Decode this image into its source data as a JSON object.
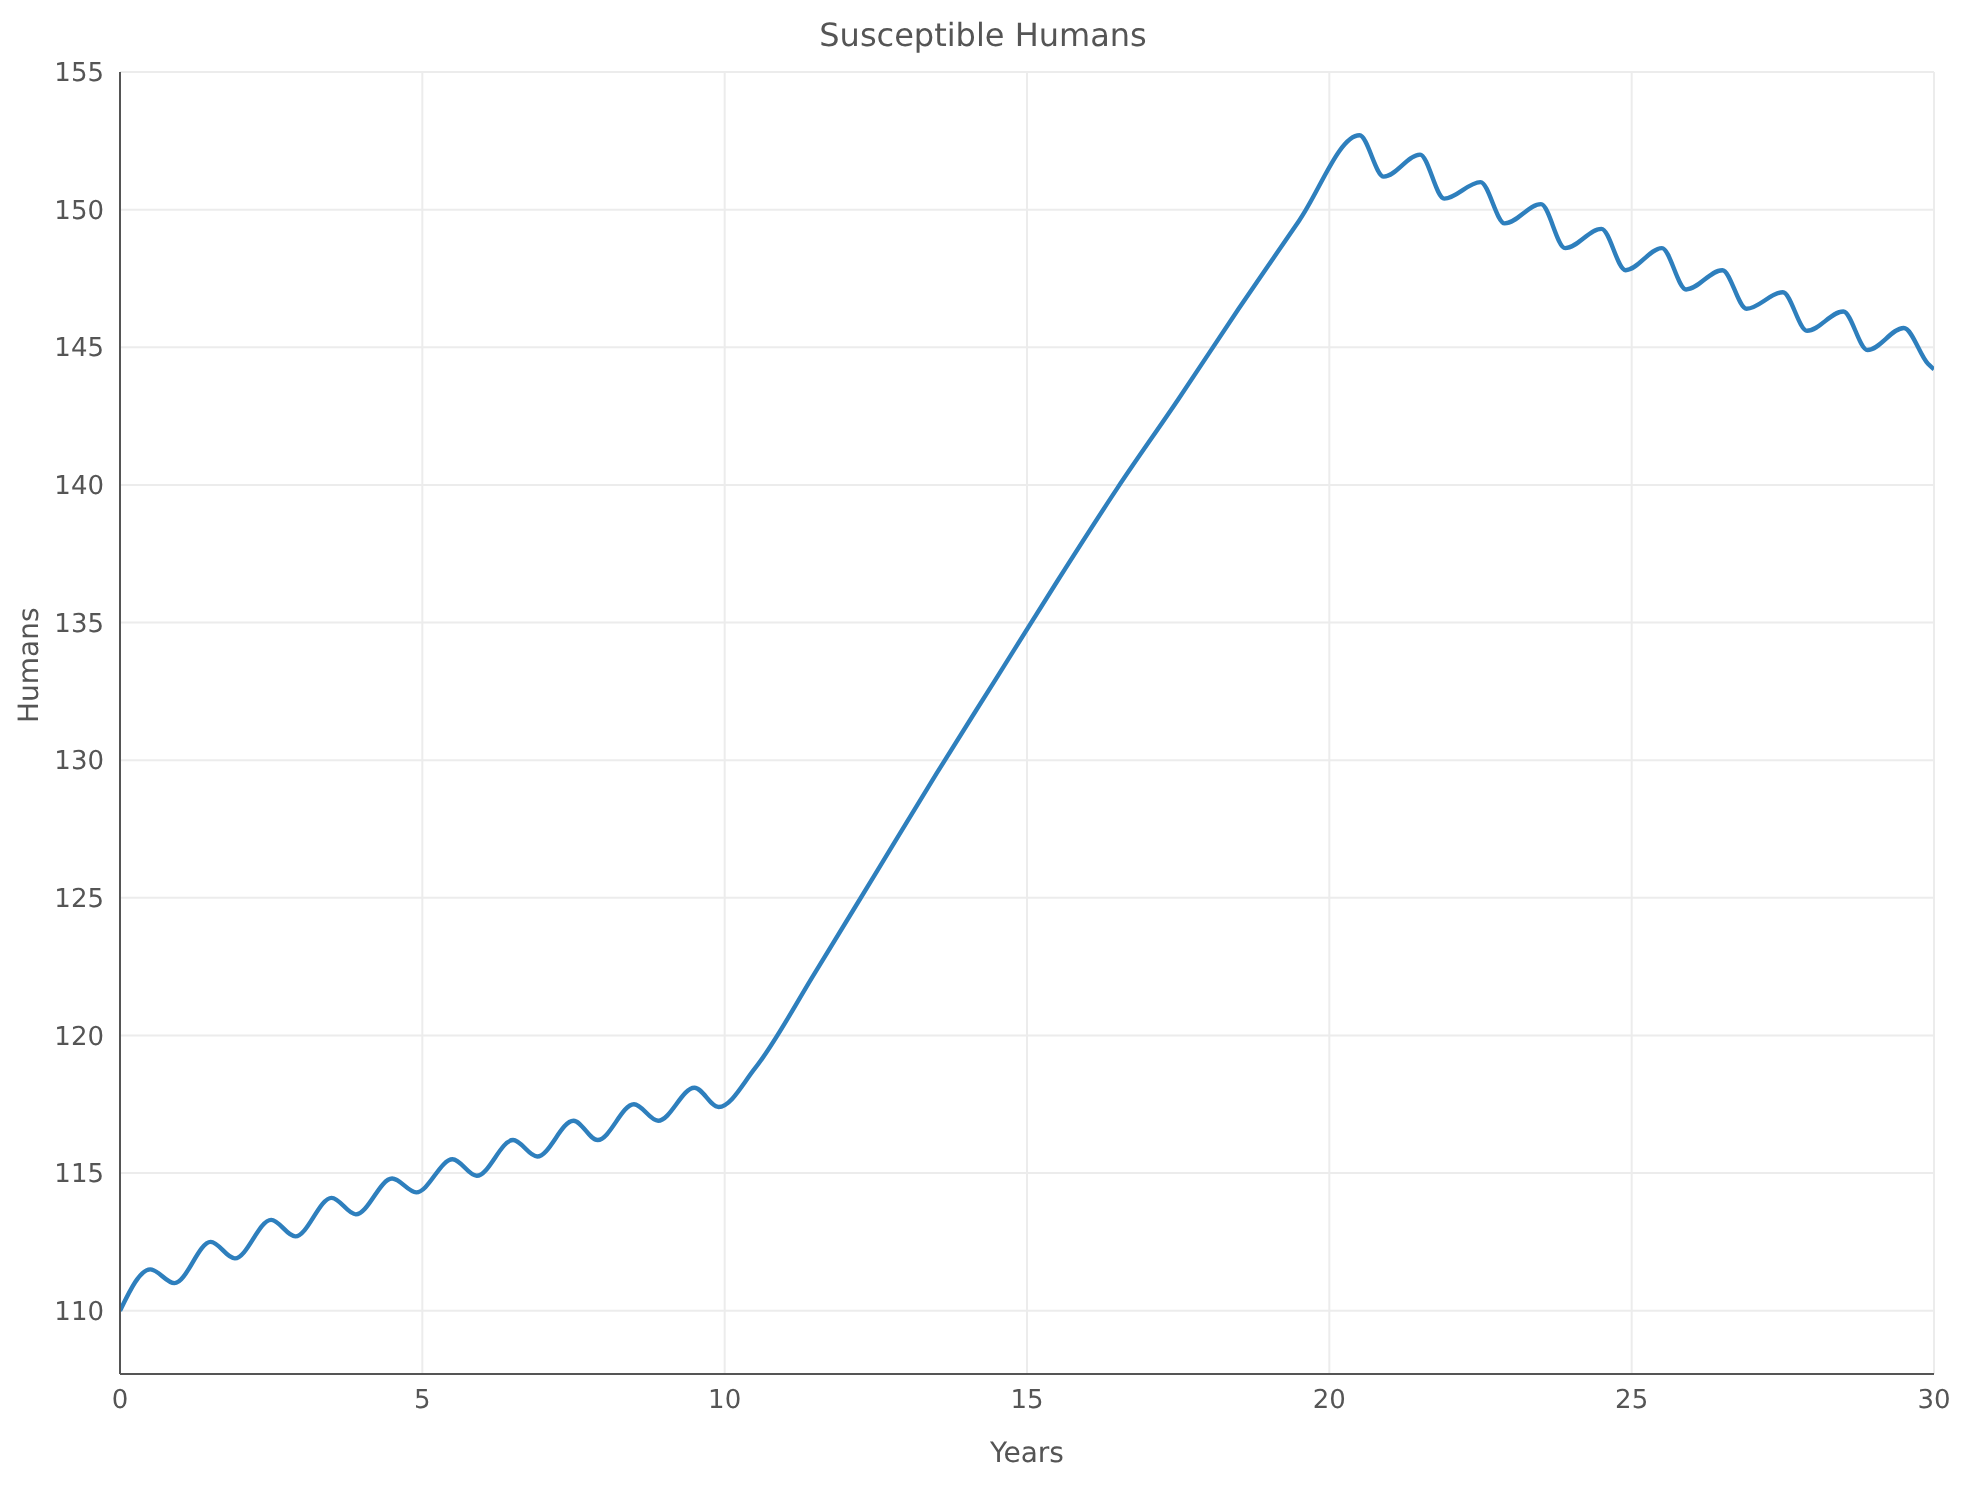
{
  "chart_data": {
    "type": "line",
    "title": "Susceptible Humans",
    "xlabel": "Years",
    "ylabel": "Humans",
    "x": [
      0,
      0.5,
      0.9,
      1.5,
      1.9,
      2.5,
      2.9,
      3.5,
      3.9,
      4.5,
      4.9,
      5.5,
      5.9,
      6.5,
      6.9,
      7.5,
      7.9,
      8.5,
      8.9,
      9.5,
      9.9,
      10.5,
      11.5,
      12.5,
      13.5,
      14.5,
      15.5,
      16.5,
      17.5,
      18.5,
      19.5,
      20.5,
      20.9,
      21.5,
      21.9,
      22.5,
      22.9,
      23.5,
      23.9,
      24.5,
      24.9,
      25.5,
      25.9,
      26.5,
      26.9,
      27.5,
      27.9,
      28.5,
      28.9,
      29.5,
      29.9,
      30
    ],
    "series": [
      {
        "color": "#2e7fbd",
        "values": [
          110.0,
          111.5,
          111.0,
          112.5,
          111.9,
          113.3,
          112.7,
          114.1,
          113.5,
          114.8,
          114.3,
          115.5,
          114.9,
          116.2,
          115.6,
          116.9,
          116.2,
          117.5,
          116.9,
          118.1,
          117.4,
          118.8,
          122.3,
          125.9,
          129.5,
          133.0,
          136.5,
          139.9,
          143.1,
          146.4,
          149.6,
          152.7,
          151.2,
          152.0,
          150.4,
          151.0,
          149.5,
          150.2,
          148.6,
          149.3,
          147.8,
          148.6,
          147.1,
          147.8,
          146.4,
          147.0,
          145.6,
          146.3,
          144.9,
          145.7,
          144.4,
          144.2
        ]
      }
    ],
    "xlim": [
      0,
      30
    ],
    "xticks": [
      0,
      5,
      10,
      15,
      20,
      25,
      30
    ],
    "ylim": [
      107.7,
      155
    ],
    "yticks": [
      110,
      115,
      120,
      125,
      130,
      135,
      140,
      145,
      150,
      155
    ],
    "grid": true,
    "marker": "none",
    "line_style": "solid",
    "legend": false
  }
}
